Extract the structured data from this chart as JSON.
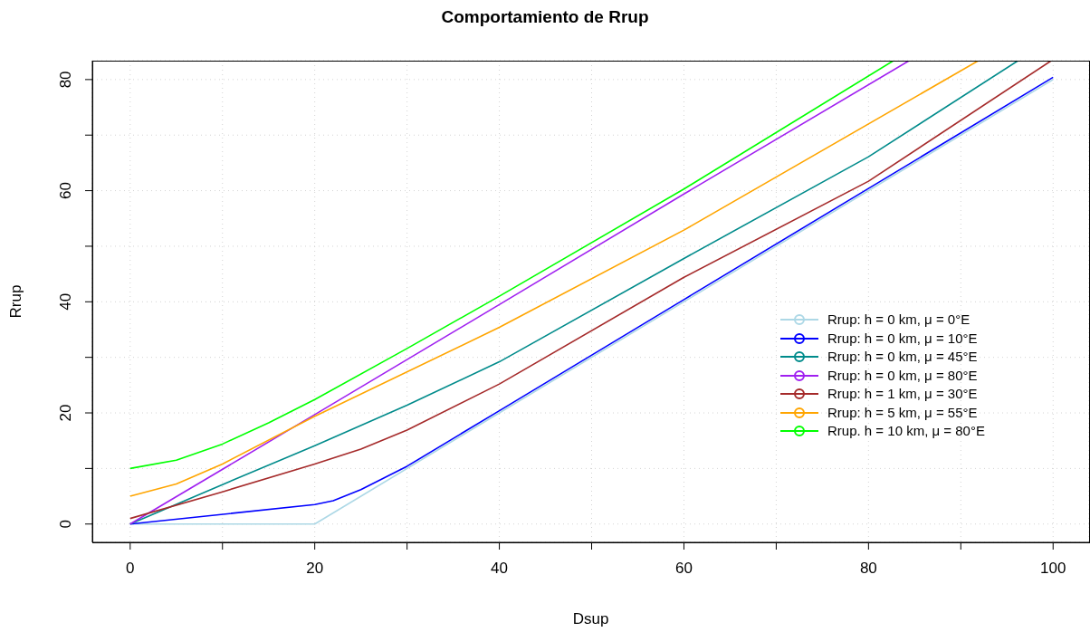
{
  "chart_data": {
    "type": "line",
    "title": "Comportamiento de Rrup",
    "xlabel": "Dsup",
    "ylabel": "Rrup",
    "xlim": [
      -4.1,
      103.9
    ],
    "ylim": [
      -3.3,
      83.4
    ],
    "xticks": [
      0,
      {
        "value": 10,
        "label": null
      },
      20,
      {
        "value": 30,
        "label": null
      },
      40,
      {
        "value": 50,
        "label": null
      },
      60,
      {
        "value": 70,
        "label": null
      },
      80,
      {
        "value": 90,
        "label": null
      },
      100
    ],
    "yticks": [
      0,
      {
        "value": 10,
        "label": null
      },
      20,
      {
        "value": 30,
        "label": null
      },
      40,
      {
        "value": 50,
        "label": null
      },
      60,
      {
        "value": 70,
        "label": null
      },
      80
    ],
    "grid": true,
    "legend": "right",
    "marker": "none",
    "line_style": "solid",
    "series": [
      {
        "name": "Rrup: h = 0 km, μ = 0°E",
        "color": "#add8e6",
        "x": [
          0,
          20,
          100
        ],
        "values": [
          0,
          0,
          80
        ]
      },
      {
        "name": "Rrup: h = 0 km, μ = 10°E",
        "color": "#0000ff",
        "x": [
          0,
          20,
          22,
          25,
          30,
          40,
          60,
          80,
          100
        ],
        "values": [
          0,
          3.5,
          4.2,
          6.2,
          10.4,
          20.4,
          40.4,
          60.4,
          80.4
        ]
      },
      {
        "name": "Rrup: h = 0 km, μ = 45°E",
        "color": "#008b8b",
        "x": [
          0,
          10,
          20,
          30,
          40,
          60,
          80,
          96.2
        ],
        "values": [
          0,
          7.1,
          14.1,
          21.4,
          29.2,
          47.8,
          66.1,
          83.4
        ]
      },
      {
        "name": "Rrup: h = 0 km, μ = 80°E",
        "color": "#a020f0",
        "x": [
          0,
          20,
          40,
          60,
          84.4
        ],
        "values": [
          0,
          19.7,
          39.5,
          59.4,
          83.4
        ]
      },
      {
        "name": "Rrup: h = 1 km, μ = 30°E",
        "color": "#a52a2a",
        "x": [
          0,
          10,
          20,
          25,
          30,
          40,
          60,
          80,
          99.8
        ],
        "values": [
          1,
          5.8,
          10.8,
          13.5,
          16.9,
          25.2,
          44.4,
          61.7,
          83.4
        ]
      },
      {
        "name": "Rrup: h = 5 km, μ = 55°E",
        "color": "#ffa500",
        "x": [
          0,
          5,
          10,
          20,
          40,
          60,
          91.9
        ],
        "values": [
          5,
          7.2,
          10.8,
          19.4,
          35.4,
          52.9,
          83.4
        ]
      },
      {
        "name": "Rrup. h = 10 km, μ = 80°E",
        "color": "#00ff00",
        "x": [
          0,
          5,
          10,
          15,
          20,
          30,
          40,
          60,
          82.7
        ],
        "values": [
          10,
          11.5,
          14.4,
          18.2,
          22.4,
          31.6,
          41,
          60.3,
          83.4
        ]
      }
    ]
  }
}
